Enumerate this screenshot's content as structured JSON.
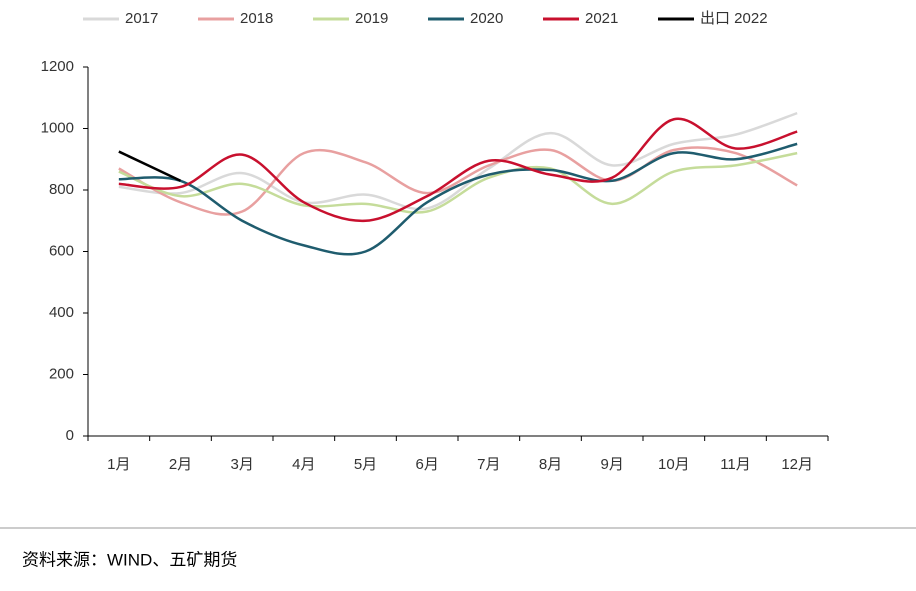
{
  "chart_data": {
    "type": "line",
    "categories": [
      "1月",
      "2月",
      "3月",
      "4月",
      "5月",
      "6月",
      "7月",
      "8月",
      "9月",
      "10月",
      "11月",
      "12月"
    ],
    "series": [
      {
        "name": "2017",
        "color": "#d9d9d9",
        "values": [
          810,
          790,
          855,
          760,
          785,
          740,
          870,
          985,
          880,
          950,
          980,
          1050
        ]
      },
      {
        "name": "2018",
        "color": "#e8a0a0",
        "values": [
          870,
          760,
          730,
          920,
          890,
          790,
          880,
          930,
          830,
          930,
          920,
          815
        ]
      },
      {
        "name": "2019",
        "color": "#c5dc9a",
        "values": [
          860,
          780,
          820,
          750,
          755,
          730,
          840,
          870,
          755,
          860,
          880,
          920
        ]
      },
      {
        "name": "2020",
        "color": "#1f5c6e",
        "values": [
          835,
          830,
          700,
          620,
          600,
          760,
          850,
          865,
          830,
          920,
          900,
          950
        ]
      },
      {
        "name": "2021",
        "color": "#c8102e",
        "values": [
          820,
          810,
          915,
          760,
          700,
          780,
          895,
          850,
          840,
          1030,
          935,
          990
        ]
      },
      {
        "name": "出口 2022",
        "color": "#000000",
        "values": [
          925,
          830,
          null,
          null,
          null,
          null,
          null,
          null,
          null,
          null,
          null,
          null
        ]
      }
    ],
    "ylim": [
      0,
      1200
    ],
    "yticks": [
      0,
      200,
      400,
      600,
      800,
      1000,
      1200
    ],
    "source": "资料来源：WIND、五矿期货"
  }
}
